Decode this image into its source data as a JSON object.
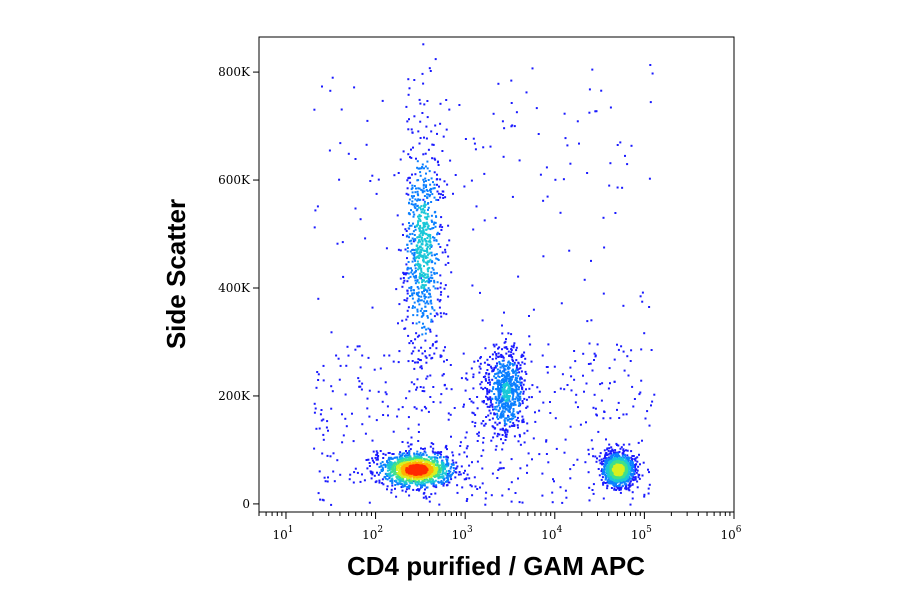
{
  "chart_data": {
    "type": "scatter",
    "subtype": "flow-cytometry density dot plot",
    "xlabel": "CD4 purified / GAM APC",
    "ylabel": "Side Scatter",
    "x_scale": "log",
    "xlim": [
      5,
      1000000
    ],
    "ylim": [
      -15000,
      865000
    ],
    "x_ticks": [
      {
        "value": 10,
        "base": "10",
        "exp": "1"
      },
      {
        "value": 100,
        "base": "10",
        "exp": "2"
      },
      {
        "value": 1000,
        "base": "10",
        "exp": "3"
      },
      {
        "value": 10000,
        "base": "10",
        "exp": "4"
      },
      {
        "value": 100000,
        "base": "10",
        "exp": "5"
      },
      {
        "value": 1000000,
        "base": "10",
        "exp": "6"
      }
    ],
    "y_ticks": [
      {
        "value": 0,
        "label": "0"
      },
      {
        "value": 200000,
        "label": "200K"
      },
      {
        "value": 400000,
        "label": "400K"
      },
      {
        "value": 600000,
        "label": "600K"
      },
      {
        "value": 800000,
        "label": "800K"
      }
    ],
    "populations": [
      {
        "x_center": 280,
        "y_center": 65000,
        "x_spread_decades": 0.28,
        "y_spread": 22000,
        "relative_density": 1.0
      },
      {
        "x_center": 330,
        "y_center": 480000,
        "x_spread_decades": 0.17,
        "y_spread": 160000,
        "relative_density": 0.45
      },
      {
        "x_center": 2800,
        "y_center": 210000,
        "x_spread_decades": 0.17,
        "y_spread": 65000,
        "relative_density": 0.4
      },
      {
        "x_center": 50000,
        "y_center": 65000,
        "x_spread_decades": 0.13,
        "y_spread": 22000,
        "relative_density": 0.75
      }
    ],
    "colormap": [
      "#1a1aff",
      "#0a7fff",
      "#19c7d8",
      "#3fe08a",
      "#d8f020",
      "#ffb000",
      "#ff2a00"
    ],
    "grid": false,
    "legend": "none"
  }
}
